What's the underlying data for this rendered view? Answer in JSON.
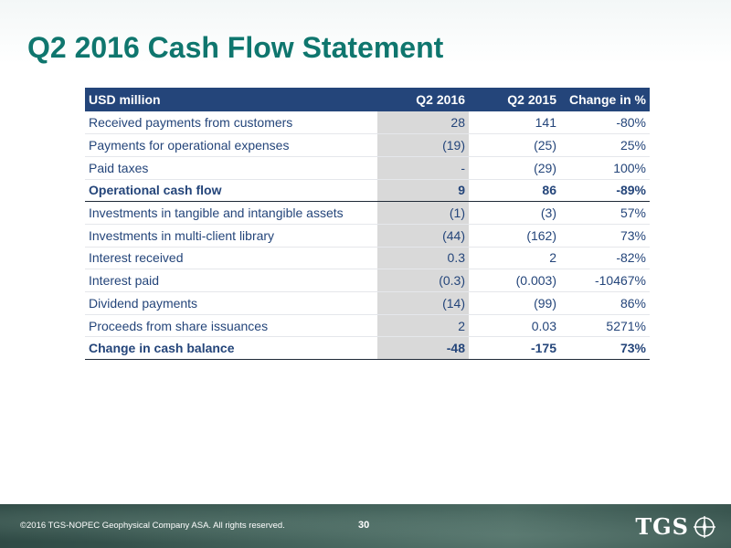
{
  "title": "Q2 2016 Cash Flow Statement",
  "table": {
    "headers": [
      "USD million",
      "Q2 2016",
      "Q2 2015",
      "Change in %"
    ],
    "rows": [
      {
        "label": "Received payments from customers",
        "q2_2016": "28",
        "q2_2015": "141",
        "change": "-80%",
        "total": false
      },
      {
        "label": "Payments for operational expenses",
        "q2_2016": "(19)",
        "q2_2015": "(25)",
        "change": "25%",
        "total": false
      },
      {
        "label": "Paid taxes",
        "q2_2016": "-",
        "q2_2015": "(29)",
        "change": "100%",
        "total": false
      },
      {
        "label": "Operational cash flow",
        "q2_2016": "9",
        "q2_2015": "86",
        "change": "-89%",
        "total": true
      },
      {
        "label": "Investments in tangible and intangible assets",
        "q2_2016": "(1)",
        "q2_2015": "(3)",
        "change": "57%",
        "total": false
      },
      {
        "label": "Investments in multi-client library",
        "q2_2016": "(44)",
        "q2_2015": "(162)",
        "change": "73%",
        "total": false
      },
      {
        "label": "Interest received",
        "q2_2016": "0.3",
        "q2_2015": "2",
        "change": "-82%",
        "total": false
      },
      {
        "label": "Interest paid",
        "q2_2016": "(0.3)",
        "q2_2015": "(0.003)",
        "change": "-10467%",
        "total": false
      },
      {
        "label": "Dividend payments",
        "q2_2016": "(14)",
        "q2_2015": "(99)",
        "change": "86%",
        "total": false
      },
      {
        "label": "Proceeds from share issuances",
        "q2_2016": "2",
        "q2_2015": "0.03",
        "change": "5271%",
        "total": false
      },
      {
        "label": "Change in cash balance",
        "q2_2016": "-48",
        "q2_2015": "-175",
        "change": "73%",
        "total": true
      }
    ]
  },
  "footer": {
    "copyright": "©2016 TGS-NOPEC Geophysical Company ASA. All rights reserved.",
    "page_number": "30",
    "logo_text": "TGS"
  },
  "colors": {
    "title": "#0f766e",
    "header_bg": "#24457a",
    "text": "#24457a",
    "highlight_col": "#d9d9d9"
  },
  "icons": {
    "logo_mark": "tgs-compass-icon"
  }
}
